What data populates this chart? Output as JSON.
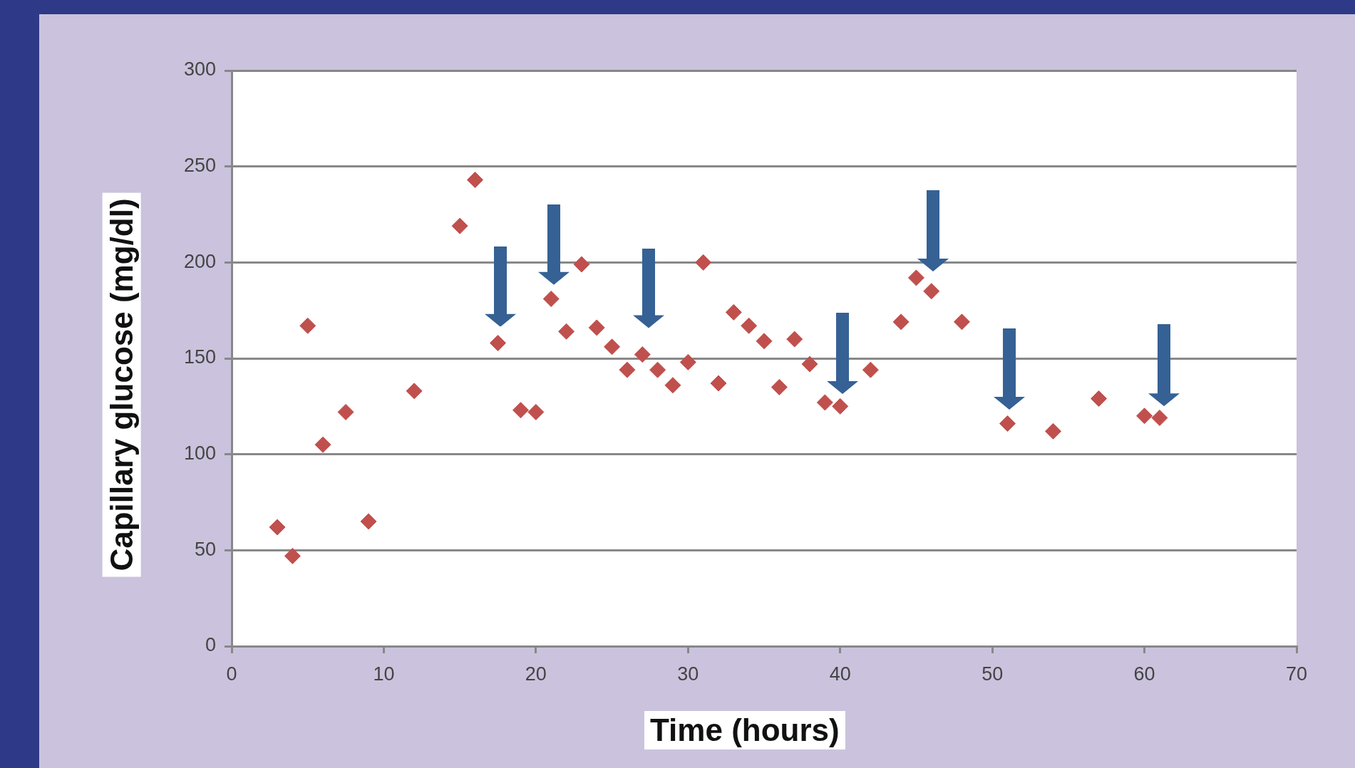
{
  "chart_data": {
    "type": "scatter",
    "xlabel": "Time (hours)",
    "ylabel": "Capillary glucose (mg/dl)",
    "x": [
      3,
      4,
      5,
      6,
      7.5,
      9,
      12,
      15,
      16,
      17.5,
      19,
      20,
      21,
      22,
      23,
      24,
      25,
      26,
      27,
      28,
      29,
      30,
      31,
      32,
      33,
      34,
      35,
      36,
      37,
      38,
      39,
      40,
      42,
      44,
      45,
      46,
      48,
      51,
      54,
      57,
      60,
      61
    ],
    "series": [
      {
        "color": "#c0504d",
        "values": [
          62,
          47,
          167,
          105,
          122,
          65,
          133,
          219,
          243,
          158,
          123,
          122,
          181,
          164,
          199,
          166,
          156,
          144,
          152,
          144,
          136,
          148,
          200,
          137,
          174,
          167,
          159,
          135,
          160,
          147,
          127,
          125,
          144,
          169,
          192,
          185,
          169,
          116,
          112,
          129,
          120,
          119
        ]
      }
    ],
    "xlim": [
      0,
      70
    ],
    "xticks": [
      0,
      10,
      20,
      30,
      40,
      50,
      60,
      70
    ],
    "ylim": [
      0,
      300
    ],
    "yticks": [
      0,
      50,
      100,
      150,
      200,
      250,
      300
    ],
    "grid": "y",
    "marker": "diamond",
    "legend": false
  }
}
